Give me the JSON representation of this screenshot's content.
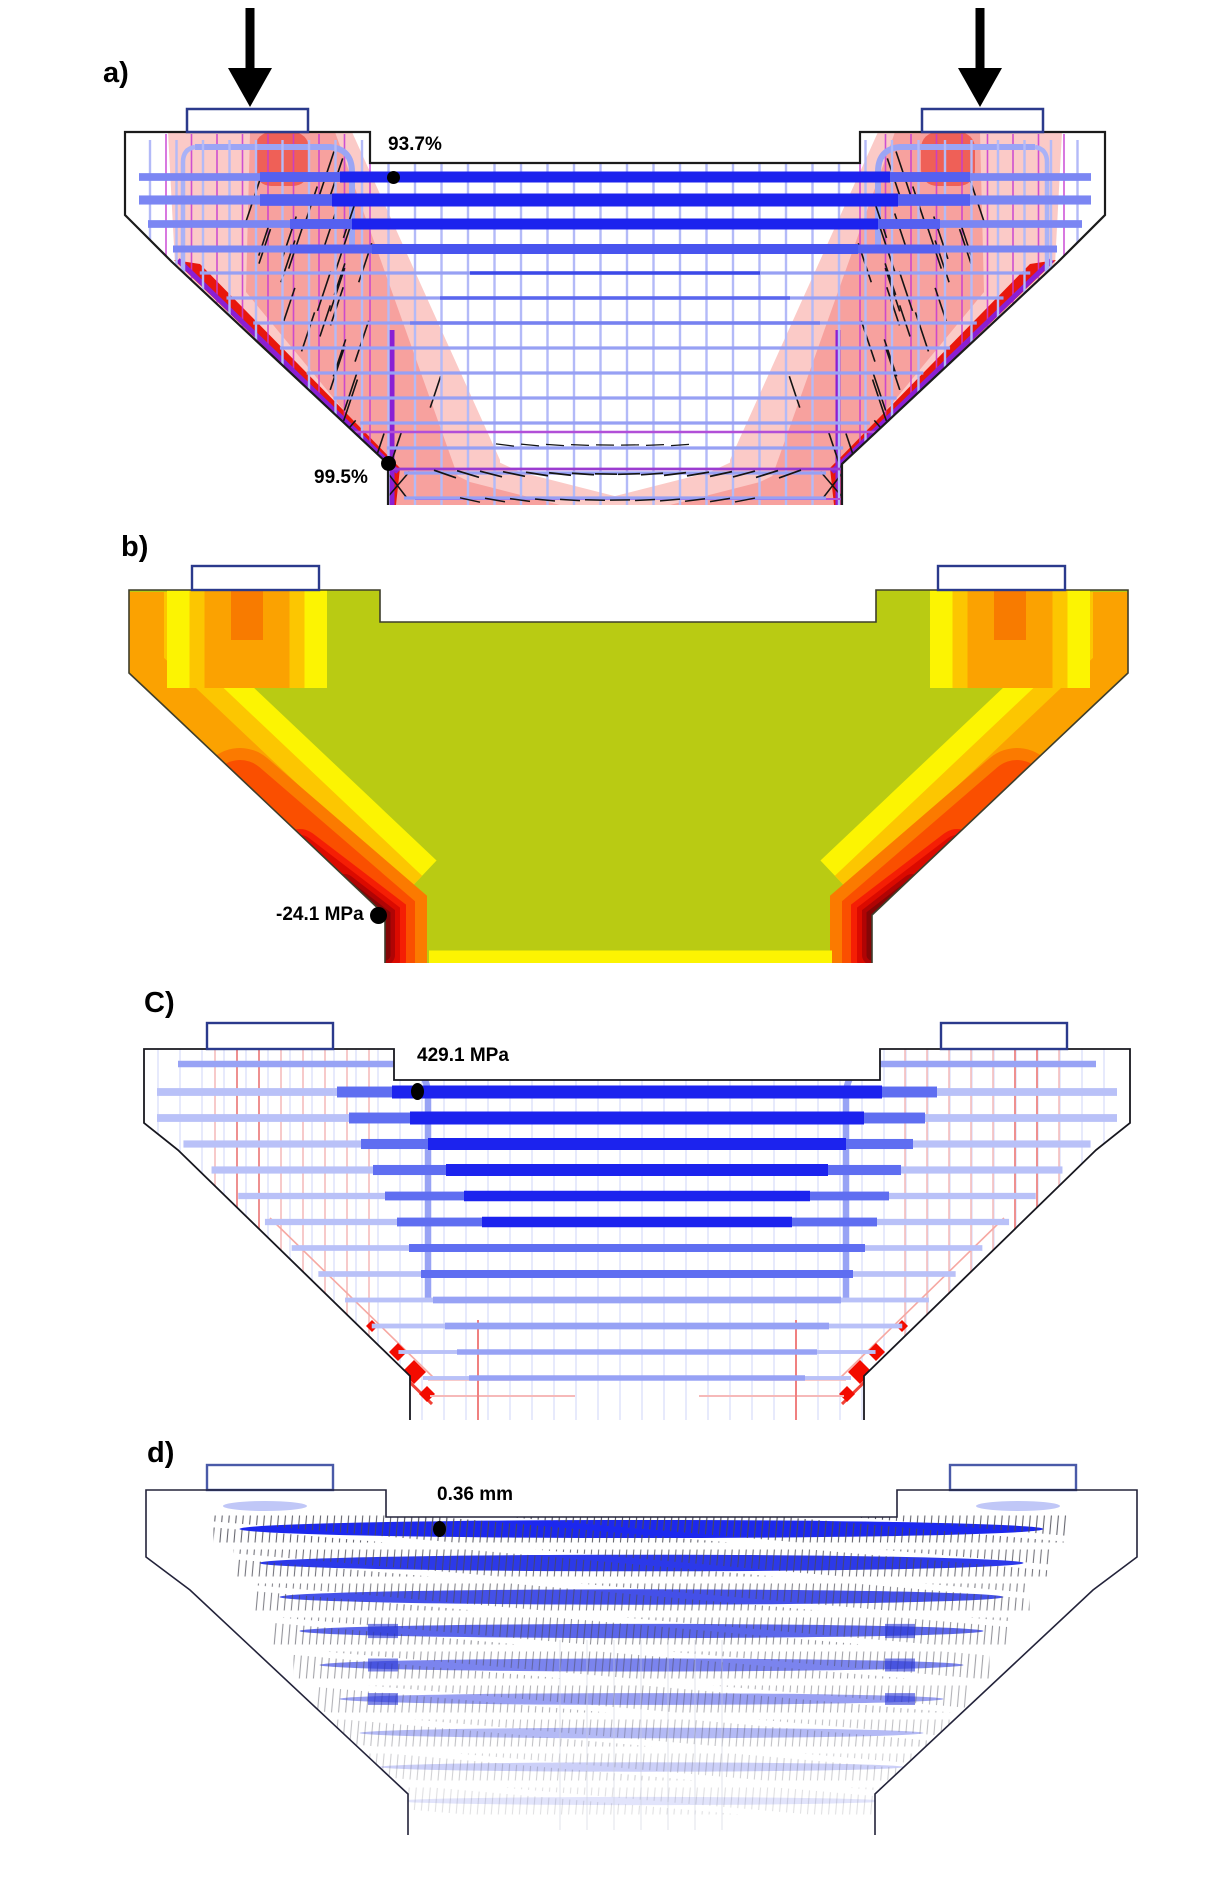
{
  "panels": {
    "a": {
      "label": "a)",
      "annotations": [
        {
          "text": "93.7%"
        },
        {
          "text": "99.5%"
        }
      ]
    },
    "b": {
      "label": "b)",
      "annotations": [
        {
          "text": "-24.1 MPa"
        }
      ]
    },
    "c": {
      "label": "C)",
      "annotations": [
        {
          "text": "429.1 MPa"
        }
      ]
    },
    "d": {
      "label": "d)",
      "annotations": [
        {
          "text": "0.36 mm"
        }
      ]
    }
  },
  "colors": {
    "rebar_dark_blue": "#1c23ee",
    "rebar_mid_blue": "#5560f0",
    "rebar_light_blue": "#97a0f4",
    "stirrup_blue": "#b3baf8",
    "grid_magenta": "#c53ad2",
    "tie_purple": "#8a1fd4",
    "stress_pink_light": "#fbcac7",
    "stress_pink_mid": "#f7a19e",
    "stress_red": "#e9170c",
    "crack_black": "#141414",
    "contour_green": "#b9cb13",
    "contour_yellow": "#fcf402",
    "contour_gold": "#fcc601",
    "contour_orange": "#fba201",
    "contour_deep_orange": "#fb7a00",
    "contour_red_orange": "#fa4f00",
    "contour_red": "#f51e04",
    "contour_dark_red": "#db0a00",
    "contour_maroon": "#840606",
    "plate_outline": "#2b3a8c",
    "displacement_blue": "#1c28ee",
    "load_arrow": "#000000"
  }
}
